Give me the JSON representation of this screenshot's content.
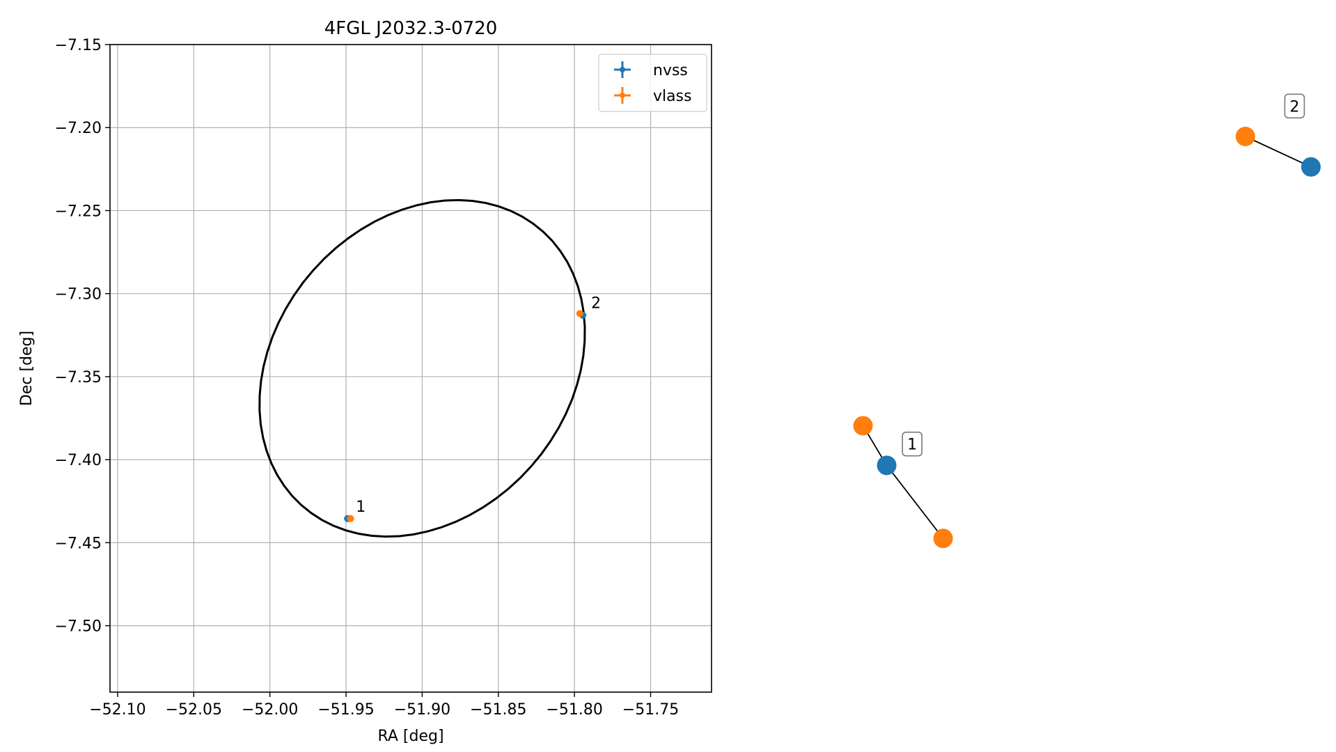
{
  "chart_data": [
    {
      "type": "scatter",
      "title": "4FGL J2032.3-0720",
      "xlabel": "RA [deg]",
      "ylabel": "Dec [deg]",
      "xlim": [
        -52.105,
        -51.71
      ],
      "ylim": [
        -7.54,
        -7.15
      ],
      "xticks": [
        -52.1,
        -52.05,
        -52.0,
        -51.95,
        -51.9,
        -51.85,
        -51.8,
        -51.75
      ],
      "xtick_labels": [
        "−52.10",
        "−52.05",
        "−52.00",
        "−51.95",
        "−51.90",
        "−51.85",
        "−51.80",
        "−51.75"
      ],
      "yticks": [
        -7.15,
        -7.2,
        -7.25,
        -7.3,
        -7.35,
        -7.4,
        -7.45,
        -7.5
      ],
      "ytick_labels": [
        "−7.15",
        "−7.20",
        "−7.25",
        "−7.30",
        "−7.35",
        "−7.40",
        "−7.45",
        "−7.50"
      ],
      "grid": true,
      "legend_position": "top-right",
      "series": [
        {
          "name": "nvss",
          "color": "#1f77b4",
          "points": [
            {
              "x": -51.949,
              "y": -7.4355
            },
            {
              "x": -51.7945,
              "y": -7.313
            }
          ]
        },
        {
          "name": "vlass",
          "color": "#ff7f0e",
          "points": [
            {
              "x": -51.947,
              "y": -7.4355
            },
            {
              "x": -51.7965,
              "y": -7.312
            }
          ]
        }
      ],
      "ellipse": {
        "center": {
          "x": -51.9,
          "y": -7.345
        },
        "semi_a": 0.115,
        "semi_b": 0.092,
        "angle_deg": 38,
        "color": "#000000"
      },
      "annotations": [
        {
          "text": "1",
          "x": -51.949,
          "y": -7.4355
        },
        {
          "text": "2",
          "x": -51.7945,
          "y": -7.313
        }
      ]
    },
    {
      "type": "network",
      "colors": {
        "nvss": "#1f77b4",
        "vlass": "#ff7f0e"
      },
      "groups": [
        {
          "label": "1",
          "nodes": [
            {
              "id": "n1",
              "kind": "nvss",
              "x": 0.135,
              "y": 0.42
            },
            {
              "id": "v1a",
              "kind": "vlass",
              "x": 0.07,
              "y": 0.55
            },
            {
              "id": "v1b",
              "kind": "vlass",
              "x": 0.29,
              "y": 0.18
            }
          ],
          "edges": [
            [
              "n1",
              "v1a"
            ],
            [
              "n1",
              "v1b"
            ]
          ],
          "label_pos": {
            "x": 0.205,
            "y": 0.49
          }
        },
        {
          "label": "2",
          "nodes": [
            {
              "id": "n2",
              "kind": "nvss",
              "x": 1.3,
              "y": 1.4
            },
            {
              "id": "v2",
              "kind": "vlass",
              "x": 1.12,
              "y": 1.5
            }
          ],
          "edges": [
            [
              "n2",
              "v2"
            ]
          ],
          "label_pos": {
            "x": 1.255,
            "y": 1.6
          }
        }
      ]
    }
  ]
}
